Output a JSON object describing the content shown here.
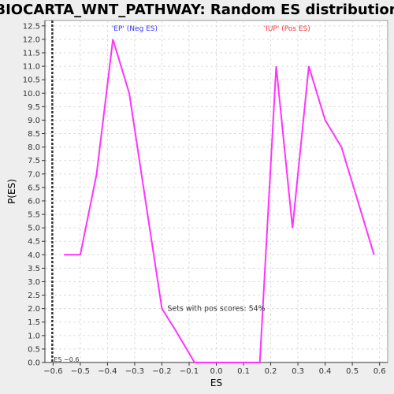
{
  "chart_data": {
    "type": "line",
    "title": "BIOCARTA_WNT_PATHWAY: Random ES distribution",
    "xlabel": "ES",
    "ylabel": "P(ES)",
    "xlim": [
      -0.63,
      0.63
    ],
    "ylim": [
      0,
      12.7
    ],
    "x_ticks": [
      "−0.6",
      "−0.5",
      "−0.4",
      "−0.3",
      "−0.2",
      "−0.1",
      "0.0",
      "0.1",
      "0.2",
      "0.3",
      "0.4",
      "0.5",
      "0.6"
    ],
    "x_tick_values": [
      -0.6,
      -0.5,
      -0.4,
      -0.3,
      -0.2,
      -0.1,
      0.0,
      0.1,
      0.2,
      0.3,
      0.4,
      0.5,
      0.6
    ],
    "y_ticks": [
      "0.0",
      "0.5",
      "1.0",
      "1.5",
      "2.0",
      "2.5",
      "3.0",
      "3.5",
      "4.0",
      "4.5",
      "5.0",
      "5.5",
      "6.0",
      "6.5",
      "7.0",
      "7.5",
      "8.0",
      "8.5",
      "9.0",
      "9.5",
      "10.0",
      "10.5",
      "11.0",
      "11.5",
      "12.0",
      "12.5"
    ],
    "y_tick_values": [
      0,
      0.5,
      1,
      1.5,
      2,
      2.5,
      3,
      3.5,
      4,
      4.5,
      5,
      5.5,
      6,
      6.5,
      7,
      7.5,
      8,
      8.5,
      9,
      9.5,
      10,
      10.5,
      11,
      11.5,
      12,
      12.5
    ],
    "grid": true,
    "series": [
      {
        "color": "#ff33ff",
        "x": [
          -0.56,
          -0.5,
          -0.44,
          -0.38,
          -0.32,
          -0.26,
          -0.2,
          -0.15,
          -0.08,
          0.04,
          0.16,
          0.22,
          0.28,
          0.34,
          0.4,
          0.46,
          0.58
        ],
        "y": [
          4.0,
          4.0,
          7.0,
          12.0,
          10.0,
          6.0,
          2.0,
          1.2,
          0.0,
          0.0,
          0.0,
          11.0,
          5.0,
          11.0,
          9.0,
          8.0,
          4.0
        ]
      }
    ],
    "annotations": {
      "neg": "'EP' (Neg ES)",
      "pos": "'IUP' (Pos ES)",
      "pos_scores": "Sets with pos scores: 54%",
      "es_marker": "ES −0.6"
    },
    "colors": {
      "neg": "#3333ff",
      "pos": "#ff3333",
      "line": "#ff33ff",
      "es_marker": "#333333"
    },
    "es_marker_value": -0.6
  }
}
